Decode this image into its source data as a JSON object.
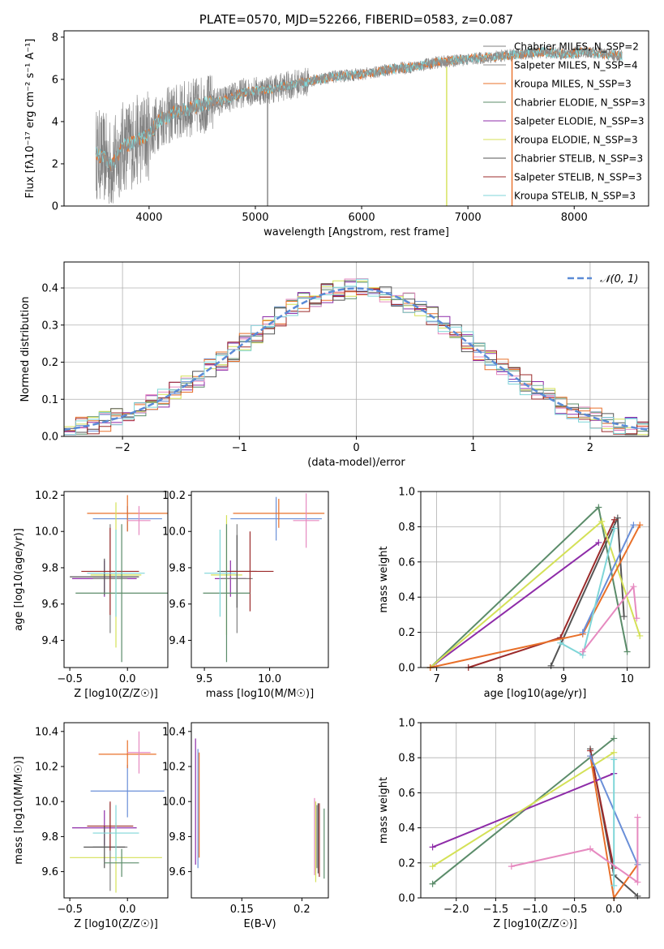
{
  "chart_data": [
    {
      "type": "line",
      "title": "PLATE=0570, MJD=52266, FIBERID=0583, z=0.087",
      "xlabel": "wavelength [Angstrom, rest frame]",
      "ylabel": "Flux [fλ10⁻¹⁷ erg cm⁻² s⁻¹ A⁻¹]",
      "xlim": [
        3200,
        8700
      ],
      "ylim": [
        0,
        8.3
      ],
      "xticks": [
        4000,
        5000,
        6000,
        7000,
        8000
      ],
      "yticks": [
        0,
        2,
        4,
        6,
        8
      ],
      "legend_location": "upper right",
      "legend": [
        "Chabrier MILES, N_SSP=2",
        "Salpeter MILES, N_SSP=4",
        "Kroupa MILES, N_SSP=3",
        "Chabrier ELODIE, N_SSP=3",
        "Salpeter ELODIE, N_SSP=3",
        "Kroupa ELODIE, N_SSP=3",
        "Chabrier STELIB, N_SSP=3",
        "Salpeter STELIB, N_SSP=3",
        "Kroupa STELIB, N_SSP=3"
      ],
      "continuum_x": [
        3500,
        3600,
        3650,
        3750,
        3850,
        4000,
        4100,
        4300,
        4500,
        4700,
        4900,
        5100,
        5300,
        5500,
        5700,
        5900,
        6100,
        6300,
        6500,
        6700,
        6900,
        7100,
        7300,
        7500,
        7700,
        7900,
        8100,
        8300,
        8450
      ],
      "continuum_y": [
        2.5,
        2.2,
        1.9,
        2.8,
        3.0,
        3.4,
        4.1,
        4.5,
        4.8,
        5.0,
        5.4,
        5.5,
        5.7,
        5.9,
        6.1,
        6.2,
        6.3,
        6.5,
        6.6,
        6.8,
        6.9,
        7.0,
        7.1,
        7.2,
        7.3,
        7.2,
        7.3,
        7.2,
        7.1
      ],
      "data_noise_bands": [
        {
          "x": [
            3500,
            4000
          ],
          "amplitude": 2.2
        },
        {
          "x": [
            4000,
            4600
          ],
          "amplitude": 1.4
        },
        {
          "x": [
            4600,
            5500
          ],
          "amplitude": 0.7
        },
        {
          "x": [
            5500,
            8450
          ],
          "amplitude": 0.3
        }
      ],
      "spikes": [
        {
          "x": 5115,
          "y0": 0,
          "y1": 5.2,
          "color": "#808080"
        },
        {
          "x": 6800,
          "y0": 0,
          "y1": 6.6,
          "color": "#d4e157"
        },
        {
          "x": 7415,
          "y0": 0,
          "y1": 7.1,
          "color": "#e8702a"
        }
      ]
    },
    {
      "type": "bar",
      "xlabel": "(data-model)/error",
      "ylabel": "Normed distribution",
      "xlim": [
        -2.5,
        2.5
      ],
      "ylim": [
        0,
        0.47
      ],
      "xticks": [
        -2,
        -1,
        0,
        1,
        2
      ],
      "yticks": [
        0.0,
        0.1,
        0.2,
        0.3,
        0.4
      ],
      "grid": true,
      "legend": [
        "𝒩(0, 1)"
      ],
      "legend_location": "upper right",
      "bin_width": 0.1
    },
    {
      "type": "scatter",
      "xlabel": "Z [log10(Z/Z☉)]",
      "ylabel": "age [log10(age/yr)]",
      "xlim": [
        -0.55,
        0.35
      ],
      "ylim": [
        9.25,
        10.22
      ],
      "xticks": [
        -0.5,
        0.0
      ],
      "yticks": [
        9.4,
        9.6,
        9.8,
        10.0,
        10.2
      ],
      "points": [
        {
          "x": -0.2,
          "y": 9.74,
          "xerr": 0.28,
          "yerr": 0.1
        },
        {
          "x": 0.0,
          "y": 10.07,
          "xerr": 0.3,
          "yerr": 0.07
        },
        {
          "x": 0.0,
          "y": 10.1,
          "xerr": 0.35,
          "yerr": 0.1
        },
        {
          "x": 0.1,
          "y": 10.06,
          "xerr": 0.1,
          "yerr": 0.08
        },
        {
          "x": -0.1,
          "y": 9.76,
          "xerr": 0.22,
          "yerr": 0.4
        },
        {
          "x": -0.15,
          "y": 9.74,
          "xerr": 0.15,
          "yerr": 0.3
        },
        {
          "x": -0.2,
          "y": 9.75,
          "xerr": 0.3,
          "yerr": 0.1
        },
        {
          "x": -0.15,
          "y": 9.78,
          "xerr": 0.25,
          "yerr": 0.24
        },
        {
          "x": -0.05,
          "y": 9.66,
          "xerr": 0.4,
          "yerr": 0.38
        },
        {
          "x": -0.1,
          "y": 9.77,
          "xerr": 0.25,
          "yerr": 0.24
        }
      ]
    },
    {
      "type": "scatter",
      "xlabel": "mass [log10(M/M☉)]",
      "xlim": [
        9.4,
        10.45
      ],
      "ylim": [
        9.25,
        10.22
      ],
      "xticks": [
        9.5,
        10.0
      ],
      "yticks": [
        9.4,
        9.6,
        9.8,
        10.0,
        10.2
      ],
      "points": [
        {
          "x": 9.7,
          "y": 9.74,
          "xerr": 0.12,
          "yerr": 0.1
        },
        {
          "x": 10.05,
          "y": 10.07,
          "xerr": 0.35,
          "yerr": 0.12
        },
        {
          "x": 10.07,
          "y": 10.1,
          "xerr": 0.35,
          "yerr": 0.08
        },
        {
          "x": 10.28,
          "y": 10.06,
          "xerr": 0.1,
          "yerr": 0.15
        },
        {
          "x": 9.67,
          "y": 9.76,
          "xerr": 0.12,
          "yerr": 0.33
        },
        {
          "x": 9.75,
          "y": 9.74,
          "xerr": 0.12,
          "yerr": 0.3
        },
        {
          "x": 9.75,
          "y": 9.78,
          "xerr": 0.15,
          "yerr": 0.2
        },
        {
          "x": 9.85,
          "y": 9.78,
          "xerr": 0.18,
          "yerr": 0.22
        },
        {
          "x": 9.67,
          "y": 9.66,
          "xerr": 0.18,
          "yerr": 0.38
        },
        {
          "x": 9.62,
          "y": 9.77,
          "xerr": 0.12,
          "yerr": 0.24
        }
      ]
    },
    {
      "type": "line",
      "xlabel": "age [log10(age/yr)]",
      "ylabel": "mass weight",
      "xlim": [
        6.75,
        10.35
      ],
      "ylim": [
        0,
        1.0
      ],
      "xticks": [
        7,
        8,
        9,
        10
      ],
      "yticks": [
        0.0,
        0.2,
        0.4,
        0.6,
        0.8,
        1.0
      ],
      "grid": true,
      "series": [
        {
          "color": "#5b8c6a",
          "x": [
            6.9,
            9.55,
            10.0
          ],
          "y": [
            0.0,
            0.91,
            0.09
          ]
        },
        {
          "color": "#555555",
          "x": [
            8.8,
            9.85,
            9.95
          ],
          "y": [
            0.01,
            0.85,
            0.29
          ]
        },
        {
          "color": "#9c2b2b",
          "x": [
            7.5,
            8.95,
            9.8
          ],
          "y": [
            0.0,
            0.17,
            0.84
          ]
        },
        {
          "color": "#8e2ca8",
          "x": [
            6.9,
            9.55
          ],
          "y": [
            0.0,
            0.71
          ]
        },
        {
          "color": "#d4e157",
          "x": [
            6.9,
            9.6,
            10.2
          ],
          "y": [
            0.0,
            0.83,
            0.18
          ]
        },
        {
          "color": "#e8702a",
          "x": [
            6.9,
            9.3,
            10.2
          ],
          "y": [
            0.0,
            0.19,
            0.81
          ]
        },
        {
          "color": "#6a8fd8",
          "x": [
            9.3,
            10.1
          ],
          "y": [
            0.2,
            0.81
          ]
        },
        {
          "color": "#7fd6d8",
          "x": [
            8.95,
            9.3,
            9.8
          ],
          "y": [
            0.14,
            0.07,
            0.79
          ]
        },
        {
          "color": "#e68ac0",
          "x": [
            9.3,
            10.1,
            10.15
          ],
          "y": [
            0.09,
            0.46,
            0.28
          ]
        }
      ]
    },
    {
      "type": "scatter",
      "xlabel": "Z [log10(Z/Z☉)]",
      "ylabel": "mass [log10(M/M☉)]",
      "xlim": [
        -0.55,
        0.35
      ],
      "ylim": [
        9.45,
        10.45
      ],
      "xticks": [
        -0.5,
        0.0
      ],
      "yticks": [
        9.6,
        9.8,
        10.0,
        10.2,
        10.4
      ],
      "points": [
        {
          "x": -0.2,
          "y": 9.85,
          "xerr": 0.28,
          "yerr": 0.1
        },
        {
          "x": 0.0,
          "y": 10.06,
          "xerr": 0.32,
          "yerr": 0.15
        },
        {
          "x": 0.0,
          "y": 10.27,
          "xerr": 0.25,
          "yerr": 0.08
        },
        {
          "x": 0.1,
          "y": 10.28,
          "xerr": 0.1,
          "yerr": 0.12
        },
        {
          "x": -0.1,
          "y": 9.68,
          "xerr": 0.4,
          "yerr": 0.2
        },
        {
          "x": -0.15,
          "y": 9.74,
          "xerr": 0.15,
          "yerr": 0.25
        },
        {
          "x": -0.2,
          "y": 9.74,
          "xerr": 0.18,
          "yerr": 0.12
        },
        {
          "x": -0.15,
          "y": 9.86,
          "xerr": 0.2,
          "yerr": 0.14
        },
        {
          "x": -0.05,
          "y": 9.65,
          "xerr": 0.15,
          "yerr": 0.08
        },
        {
          "x": -0.1,
          "y": 9.82,
          "xerr": 0.2,
          "yerr": 0.16
        }
      ]
    },
    {
      "type": "scatter",
      "xlabel": "E(B-V)",
      "xlim": [
        0.108,
        0.222
      ],
      "ylim": [
        9.45,
        10.45
      ],
      "xticks": [
        0.15,
        0.2
      ],
      "yticks": [
        9.6,
        9.8,
        10.0,
        10.2,
        10.4
      ],
      "points": [
        {
          "x": 0.1115,
          "y": 10.0,
          "yerr": 0.36
        },
        {
          "x": 0.1135,
          "y": 9.96,
          "yerr": 0.34
        },
        {
          "x": 0.1145,
          "y": 9.98,
          "yerr": 0.3
        },
        {
          "x": 0.2105,
          "y": 9.8,
          "yerr": 0.22
        },
        {
          "x": 0.2115,
          "y": 9.77,
          "yerr": 0.23
        },
        {
          "x": 0.2125,
          "y": 9.8,
          "yerr": 0.18
        },
        {
          "x": 0.2135,
          "y": 9.79,
          "yerr": 0.2
        },
        {
          "x": 0.2145,
          "y": 9.78,
          "yerr": 0.21
        },
        {
          "x": 0.2185,
          "y": 9.76,
          "yerr": 0.2
        }
      ]
    },
    {
      "type": "line",
      "xlabel": "Z [log10(Z/Z☉)]",
      "ylabel": "mass weight",
      "xlim": [
        -2.45,
        0.45
      ],
      "ylim": [
        0,
        1.0
      ],
      "xticks": [
        -2.0,
        -1.5,
        -1.0,
        -0.5,
        0.0
      ],
      "yticks": [
        0.0,
        0.2,
        0.4,
        0.6,
        0.8,
        1.0
      ],
      "grid": true,
      "series": [
        {
          "color": "#5b8c6a",
          "x": [
            -2.3,
            0.0
          ],
          "y": [
            0.08,
            0.91
          ]
        },
        {
          "color": "#555555",
          "x": [
            -0.3,
            0.0,
            0.3
          ],
          "y": [
            0.85,
            0.13,
            0.01
          ]
        },
        {
          "color": "#9c2b2b",
          "x": [
            -0.3,
            0.0
          ],
          "y": [
            0.84,
            0.17
          ]
        },
        {
          "color": "#8e2ca8",
          "x": [
            -2.3,
            0.0
          ],
          "y": [
            0.29,
            0.71
          ]
        },
        {
          "color": "#d4e157",
          "x": [
            -2.3,
            0.0
          ],
          "y": [
            0.18,
            0.83
          ]
        },
        {
          "color": "#e8702a",
          "x": [
            -0.3,
            0.0,
            0.3
          ],
          "y": [
            0.81,
            0.0,
            0.19
          ]
        },
        {
          "color": "#6a8fd8",
          "x": [
            -0.3,
            0.3
          ],
          "y": [
            0.81,
            0.19
          ]
        },
        {
          "color": "#7fd6d8",
          "x": [
            0.0,
            0.0
          ],
          "y": [
            0.07,
            0.79
          ]
        },
        {
          "color": "#e68ac0",
          "x": [
            -1.3,
            -0.3,
            0.3,
            0.3
          ],
          "y": [
            0.18,
            0.28,
            0.09,
            0.46
          ]
        }
      ]
    }
  ],
  "series_colors": [
    "#808080",
    "#8e8e8e",
    "#e8702a",
    "#5b8c6a",
    "#8e2ca8",
    "#d4e157",
    "#555555",
    "#9c2b2b",
    "#7fd6d8",
    "#6a8fd8",
    "#e68ac0"
  ],
  "curve_color": "#5b8bd6"
}
